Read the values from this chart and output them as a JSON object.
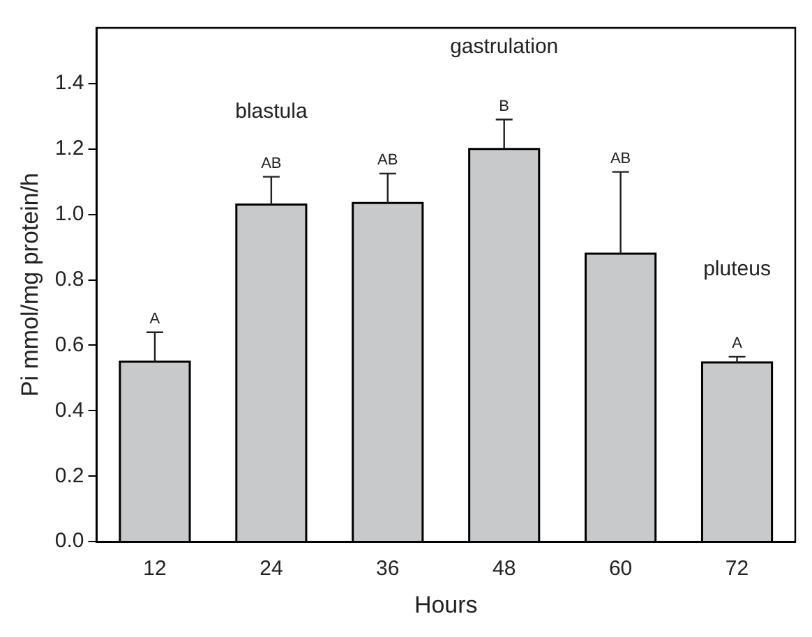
{
  "chart_data": {
    "type": "bar",
    "xlabel": "Hours",
    "ylabel": "Pi mmol/mg protein/h",
    "categories": [
      "12",
      "24",
      "36",
      "48",
      "60",
      "72"
    ],
    "values": [
      0.55,
      1.03,
      1.035,
      1.2,
      0.88,
      0.548
    ],
    "errors": [
      [
        0.55,
        0.64
      ],
      [
        1.03,
        1.115
      ],
      [
        1.035,
        1.125
      ],
      [
        1.2,
        1.29
      ],
      [
        0.88,
        1.13
      ],
      [
        0.548,
        0.565
      ]
    ],
    "color": "#c8c9cb",
    "ylim": [
      0,
      1.57
    ],
    "yticks": [
      {
        "value": 0,
        "label": "0.0"
      },
      0.2,
      0.4,
      0.6,
      0.8,
      {
        "value": 1,
        "label": "1.0"
      },
      1.2,
      1.4
    ],
    "grid": false,
    "legend": false,
    "annotations": [
      "A",
      "AB",
      "AB",
      "B",
      "AB",
      "A",
      "blastula",
      "gastrulation",
      "pluteus"
    ]
  }
}
